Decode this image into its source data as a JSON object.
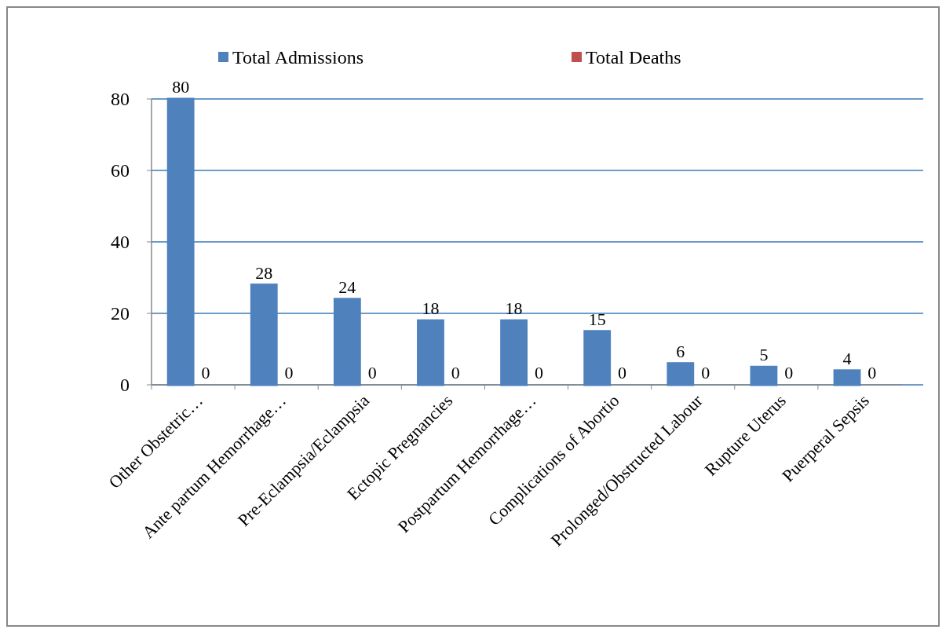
{
  "chart_data": {
    "type": "bar",
    "categories": [
      "Other Obstetric…",
      "Ante partum Hemorrhage…",
      "Pre-Eclampsia/Eclampsia",
      "Ectopic Pregnancies",
      "Postpartum Hemorrhage…",
      "Complications of Abortio",
      "Prolonged/Obstructed Labour",
      "Rupture Uterus",
      "Puerperal Sepsis"
    ],
    "series": [
      {
        "name": "Total Admissions",
        "color": "#4f81bd",
        "values": [
          80,
          28,
          24,
          18,
          18,
          15,
          6,
          5,
          4
        ]
      },
      {
        "name": "Total Deaths",
        "color": "#c0504d",
        "values": [
          0,
          0,
          0,
          0,
          0,
          0,
          0,
          0,
          0
        ]
      }
    ],
    "ylim": [
      0,
      80
    ],
    "yticks": [
      0,
      20,
      40,
      60,
      80
    ],
    "grid": "y",
    "legend": "top",
    "data_labels": true
  }
}
